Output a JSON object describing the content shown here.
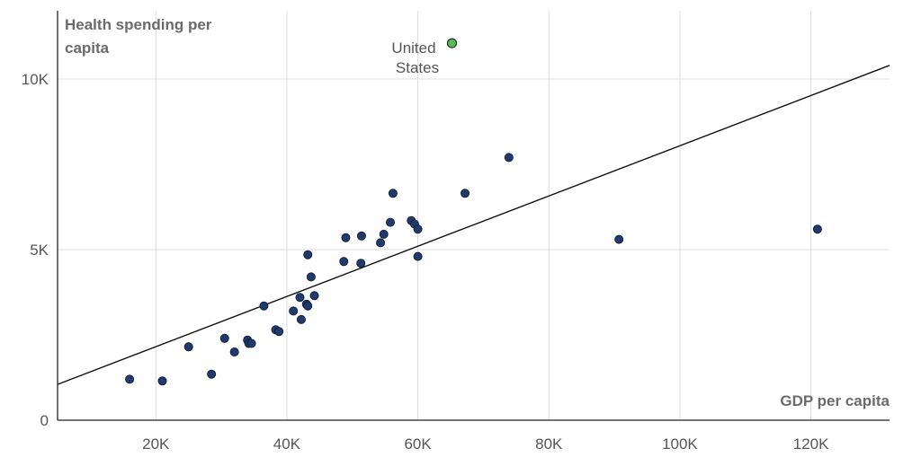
{
  "chart_data": {
    "type": "scatter",
    "ylabel": "Health spending per capita",
    "xlabel": "GDP per capita",
    "xlim": [
      5000,
      132000
    ],
    "ylim": [
      0,
      12000
    ],
    "x_ticks": [
      20000,
      40000,
      60000,
      80000,
      100000,
      120000
    ],
    "x_tick_labels": [
      "20K",
      "40K",
      "60K",
      "80K",
      "100K",
      "120K"
    ],
    "y_ticks": [
      0,
      5000,
      10000
    ],
    "y_tick_labels": [
      "0",
      "5K",
      "10K"
    ],
    "grid": true,
    "colors": {
      "point": "#1f3a6b",
      "highlight": "#5cb85c"
    },
    "trendline": {
      "x": [
        5000,
        132000
      ],
      "y": [
        1050,
        10400
      ]
    },
    "points": [
      [
        16000,
        1200
      ],
      [
        21000,
        1150
      ],
      [
        25000,
        2150
      ],
      [
        28500,
        1350
      ],
      [
        30500,
        2400
      ],
      [
        32000,
        2000
      ],
      [
        34000,
        2350
      ],
      [
        34200,
        2250
      ],
      [
        34600,
        2250
      ],
      [
        36500,
        3350
      ],
      [
        38300,
        2650
      ],
      [
        38800,
        2600
      ],
      [
        41000,
        3200
      ],
      [
        42000,
        3600
      ],
      [
        42200,
        2950
      ],
      [
        43000,
        3400
      ],
      [
        43200,
        3350
      ],
      [
        43200,
        4850
      ],
      [
        43700,
        4200
      ],
      [
        44200,
        3650
      ],
      [
        48700,
        4650
      ],
      [
        49000,
        5350
      ],
      [
        51300,
        4600
      ],
      [
        51400,
        5400
      ],
      [
        54300,
        5200
      ],
      [
        54800,
        5450
      ],
      [
        55800,
        5800
      ],
      [
        56200,
        6650
      ],
      [
        59000,
        5850
      ],
      [
        59500,
        5750
      ],
      [
        60000,
        5600
      ],
      [
        60000,
        4800
      ],
      [
        67200,
        6650
      ],
      [
        73900,
        7700
      ],
      [
        90700,
        5300
      ],
      [
        121000,
        5600
      ]
    ],
    "highlight": {
      "label": "United States",
      "x": 65200,
      "y": 11050
    }
  }
}
